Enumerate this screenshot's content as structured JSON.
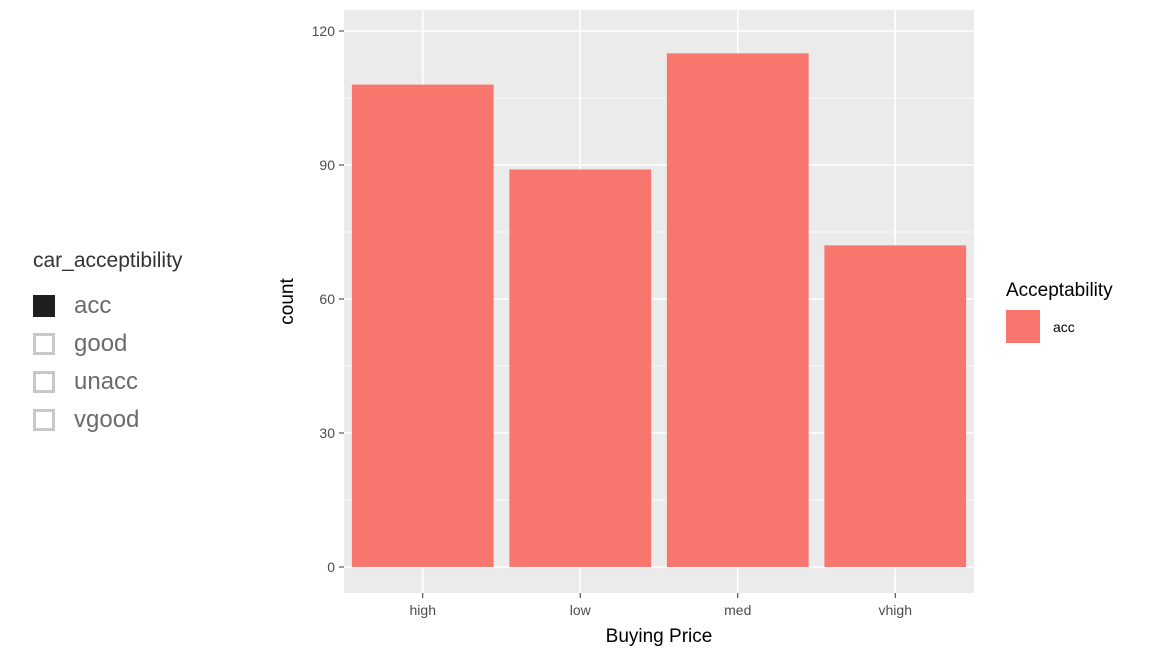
{
  "filter": {
    "title": "car_acceptibility",
    "options": [
      {
        "label": "acc",
        "checked": true
      },
      {
        "label": "good",
        "checked": false
      },
      {
        "label": "unacc",
        "checked": false
      },
      {
        "label": "vgood",
        "checked": false
      }
    ]
  },
  "colors": {
    "bar": "#f8766d",
    "panel_bg": "#ebebeb",
    "gridline": "#ffffff",
    "checked": "#1f1f1f",
    "unchecked_border": "#c8c8c8"
  },
  "chart_data": {
    "type": "bar",
    "categories": [
      "high",
      "low",
      "med",
      "vhigh"
    ],
    "series": [
      {
        "name": "acc",
        "values": [
          108,
          89,
          115,
          72
        ]
      }
    ],
    "xlabel": "Buying Price",
    "ylabel": "count",
    "ylim": [
      0,
      120
    ],
    "yticks": [
      0,
      30,
      60,
      90,
      120
    ],
    "grid": true,
    "legend": {
      "title": "Acceptability",
      "placement": "right"
    }
  }
}
